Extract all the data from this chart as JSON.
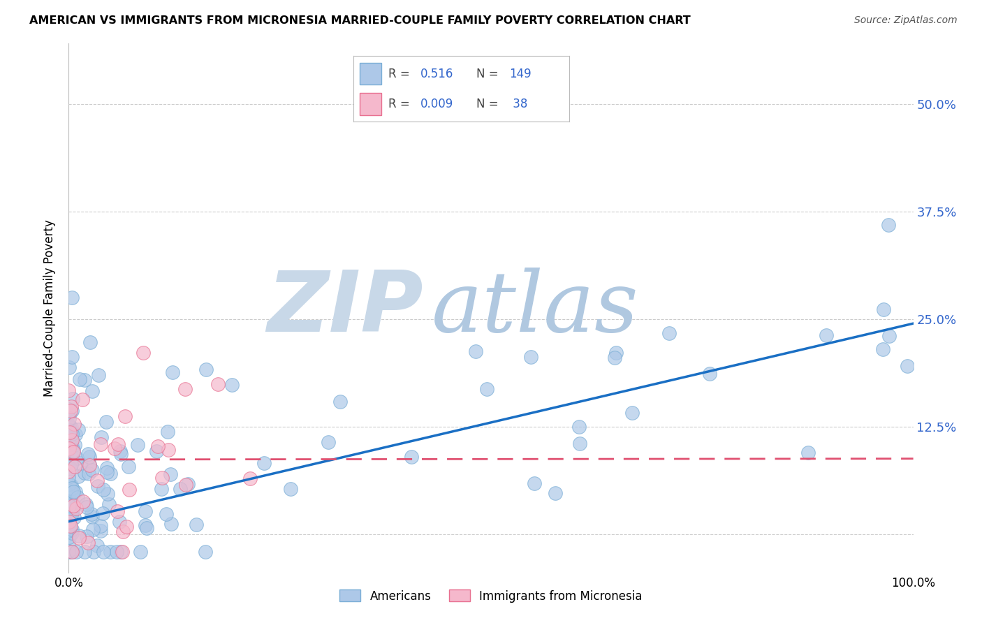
{
  "title": "AMERICAN VS IMMIGRANTS FROM MICRONESIA MARRIED-COUPLE FAMILY POVERTY CORRELATION CHART",
  "source": "Source: ZipAtlas.com",
  "ylabel": "Married-Couple Family Poverty",
  "xlim": [
    0.0,
    1.0
  ],
  "ylim": [
    -0.045,
    0.57
  ],
  "yticks": [
    0.0,
    0.125,
    0.25,
    0.375,
    0.5
  ],
  "ytick_labels_right": [
    "",
    "12.5%",
    "25.0%",
    "37.5%",
    "50.0%"
  ],
  "american_color": "#adc8e8",
  "american_edge": "#7aaed6",
  "micronesia_color": "#f5b8cc",
  "micronesia_edge": "#e87090",
  "trend_american_color": "#1a6fc4",
  "trend_micronesia_color": "#e05070",
  "R_american": 0.516,
  "N_american": 149,
  "R_micronesia": 0.009,
  "N_micronesia": 38,
  "grid_color": "#cccccc",
  "background_color": "#ffffff",
  "watermark_zip": "ZIP",
  "watermark_atlas": "atlas",
  "watermark_zip_color": "#c8d8e8",
  "watermark_atlas_color": "#b0c8e0",
  "legend_labels": [
    "Americans",
    "Immigrants from Micronesia"
  ],
  "trend_american_x0": 0.0,
  "trend_american_y0": 0.015,
  "trend_american_x1": 1.0,
  "trend_american_y1": 0.245,
  "trend_micro_x0": 0.0,
  "trend_micro_y0": 0.087,
  "trend_micro_x1": 1.0,
  "trend_micro_y1": 0.088
}
